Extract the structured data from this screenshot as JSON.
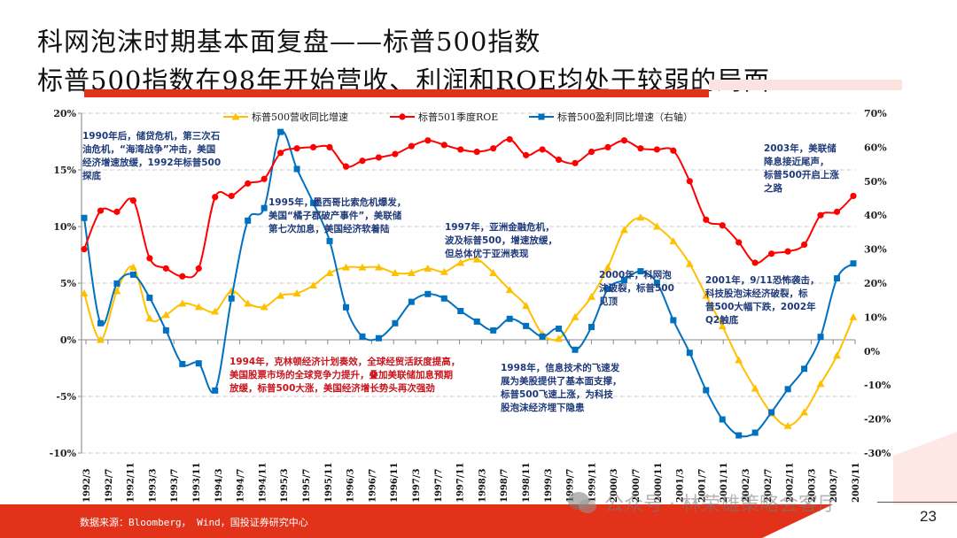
{
  "header": {
    "title": "科网泡沫时期基本面复盘——标普500指数",
    "subtitle": "标普500指数在98年开始营收、利润和ROE均处于较弱的局面"
  },
  "chart_data": {
    "type": "line",
    "x_tick_labels": [
      "1992/3",
      "1992/7",
      "1992/11",
      "1993/3",
      "1993/7",
      "1993/11",
      "1994/3",
      "1994/7",
      "1994/11",
      "1995/3",
      "1995/7",
      "1995/11",
      "1996/3",
      "1996/7",
      "1996/11",
      "1997/3",
      "1997/7",
      "1997/11",
      "1998/3",
      "1998/7",
      "1998/11",
      "1999/3",
      "1999/7",
      "1999/11",
      "2000/3",
      "2000/7",
      "2000/11",
      "2001/3",
      "2001/7",
      "2001/11",
      "2002/3",
      "2002/7",
      "2002/11",
      "2003/3",
      "2003/7",
      "2003/11"
    ],
    "x_range": [
      "1992Q1",
      "2003Q4"
    ],
    "left_axis": {
      "ylim": [
        -10,
        20
      ],
      "ticks": [
        "-10%",
        "-5%",
        "0%",
        "5%",
        "10%",
        "15%",
        "20%"
      ]
    },
    "right_axis": {
      "ylim": [
        -30,
        70
      ],
      "ticks": [
        "-30%",
        "-20%",
        "-10%",
        "0%",
        "10%",
        "20%",
        "30%",
        "40%",
        "50%",
        "60%",
        "70%"
      ]
    },
    "grid": true,
    "legend_position": "top",
    "series": [
      {
        "name": "标普500营收同比增速",
        "axis": "left",
        "color": "#ffc000",
        "marker": "triangle",
        "values": [
          4.1,
          0.0,
          4.3,
          6.4,
          1.9,
          2.2,
          3.2,
          2.9,
          2.5,
          4.3,
          3.2,
          2.9,
          3.9,
          4.1,
          4.8,
          5.9,
          6.4,
          6.4,
          6.4,
          5.9,
          5.9,
          6.3,
          6.0,
          6.8,
          7.1,
          5.9,
          4.4,
          3.0,
          0.5,
          0.1,
          2.0,
          3.8,
          6.4,
          9.7,
          10.8,
          10.0,
          8.7,
          6.7,
          3.9,
          1.2,
          -1.8,
          -4.3,
          -6.5,
          -7.6,
          -6.4,
          -3.9,
          -1.4,
          2.0
        ]
      },
      {
        "name": "标普501季度ROE",
        "axis": "left",
        "color": "#ff0000",
        "marker": "circle",
        "values": [
          8.0,
          11.4,
          11.3,
          12.3,
          7.2,
          6.3,
          5.6,
          6.3,
          12.6,
          12.7,
          13.8,
          14.2,
          16.5,
          16.9,
          17.0,
          17.0,
          15.3,
          15.8,
          16.1,
          16.4,
          17.1,
          17.6,
          17.2,
          16.8,
          16.6,
          16.9,
          17.7,
          16.3,
          16.8,
          15.9,
          15.6,
          16.6,
          17.0,
          17.6,
          16.9,
          16.8,
          16.7,
          14.0,
          10.6,
          10.1,
          8.6,
          6.8,
          7.6,
          7.8,
          8.4,
          11.0,
          11.3,
          12.7
        ]
      },
      {
        "name": "标普500盈利同比增速（右轴）",
        "axis": "right",
        "color": "#0070c0",
        "marker": "square",
        "values": [
          39.2,
          8.2,
          19.9,
          22.5,
          15.7,
          6.1,
          -3.8,
          -3.6,
          -11.6,
          15.5,
          38.4,
          42.1,
          64.5,
          53.6,
          43.6,
          32.4,
          12.9,
          4.3,
          3.8,
          8.2,
          14.5,
          16.8,
          15.5,
          11.8,
          8.7,
          6.1,
          9.5,
          7.4,
          4.3,
          6.6,
          0.4,
          7.1,
          18.3,
          20.9,
          23.5,
          20.1,
          9.1,
          -0.5,
          -11.5,
          -20.1,
          -24.8,
          -24.0,
          -18.0,
          -11.2,
          -5.2,
          4.2,
          21.4,
          25.8
        ]
      }
    ],
    "annotations": [
      {
        "text": "1990年后，储贷危机，第三次石\n油危机，“海湾战争”冲击，美国\n经济增速放缓，1992年标普500\n探底",
        "color": "#1f3a7a"
      },
      {
        "text": "1995年，墨西哥比索危机爆发，\n美国“橘子郡破产事件”，美联储\n第七次加息，美国经济软着陆",
        "color": "#1f3a7a"
      },
      {
        "text": "1997年，亚洲金融危机，\n波及标普500，增速放缓，\n但总体优于亚洲表现",
        "color": "#1f3a7a"
      },
      {
        "text": "2003年，美联储\n降息接近尾声，\n标普500开启上涨\n之路",
        "color": "#1f3a7a"
      },
      {
        "text": "2000年，科网泡\n沫破裂，标普500\n见顶",
        "color": "#1f3a7a"
      },
      {
        "text": "2001年，9/11恐怖袭击，\n科技股泡沫经济破裂，标\n普500大幅下跌，2002年\nQ2触底",
        "color": "#1f3a7a"
      },
      {
        "text": "1994年，克林顿经济计划奏效，全球经贸活跃度提高，\n美国股票市场的全球竞争力提升，叠加美联储加息预期\n放缓，标普500大涨，美国经济增长势头再次强劲",
        "color": "#c8141c"
      },
      {
        "text": "1998年，信息技术的飞速发\n展为美股提供了基本面支撑，\n标普500飞速上涨，为科技\n股泡沫经济埋下隐患",
        "color": "#1f3a7a"
      }
    ]
  },
  "footer": {
    "source": "数据来源：Bloomberg， Wind，国投证券研究中心",
    "watermark": "公众号 · 林荣雄策略会客厅",
    "page_number": "23",
    "accent_color": "#e3321a"
  }
}
